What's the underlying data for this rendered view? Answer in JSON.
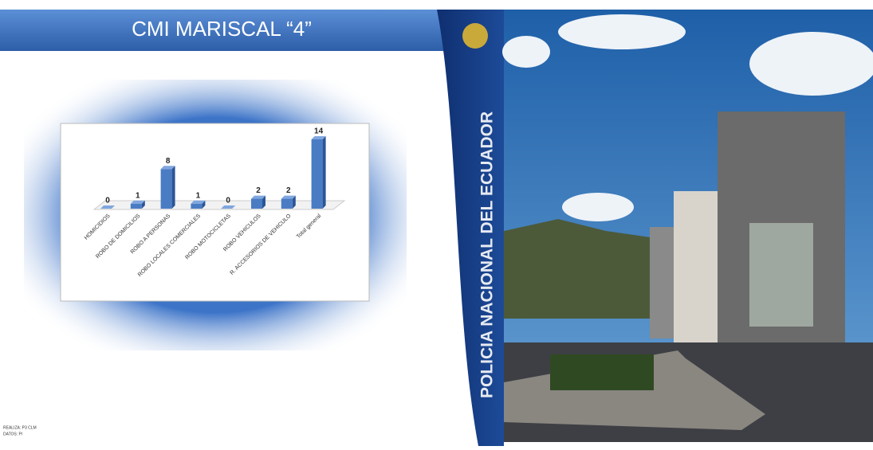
{
  "chart_data": {
    "type": "bar3d",
    "title": "CMI MARISCAL “4”",
    "categories": [
      "HOMICIDIOS",
      "ROBO DE DOMICILIOS",
      "ROBO A PERSONAS",
      "ROBO LOCALES COMERCIALES",
      "ROBO MOTOCICLETAS",
      "ROBO VEHICULOS",
      "R. ACCESORIOS DE VEHICULO",
      "Total general"
    ],
    "values": [
      0,
      1,
      8,
      1,
      0,
      2,
      2,
      14
    ],
    "color": "#4a7cc4"
  },
  "slide": {
    "side_text": "POLICIA NACIONAL DEL ECUADOR",
    "footer": [
      "REALIZA: P3 CLM",
      "DATOS: P/"
    ]
  }
}
